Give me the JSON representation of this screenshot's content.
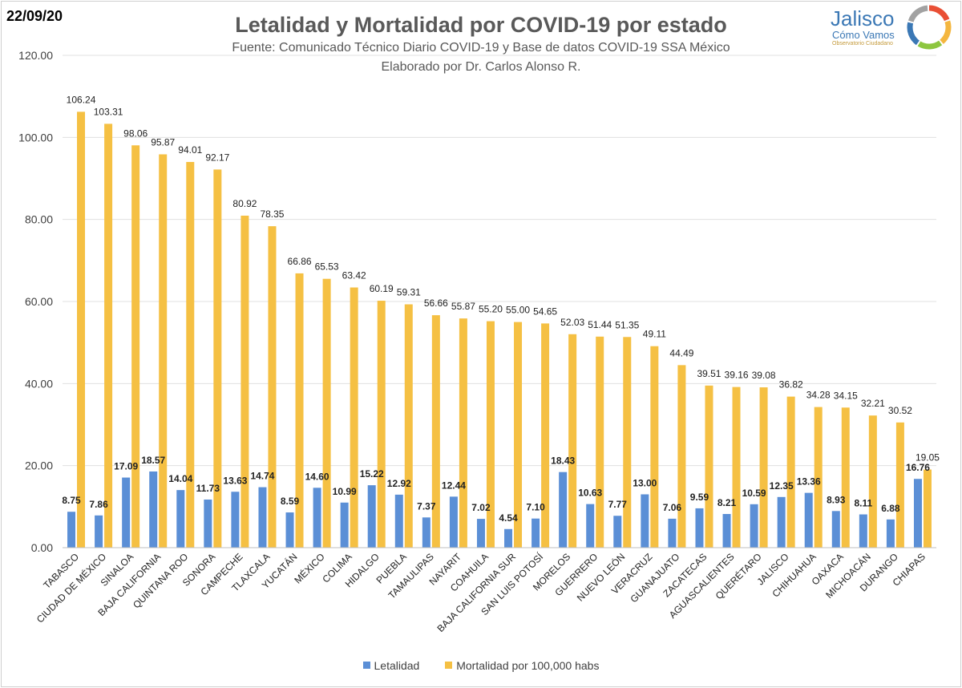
{
  "header": {
    "date": "22/09/20",
    "title": "Letalidad y Mortalidad por COVID-19 por estado",
    "subtitle1": "Fuente: Comunicado Técnico Diario COVID-19 y Base de datos COVID-19 SSA México",
    "subtitle2": "Elaborado por Dr. Carlos Alonso R."
  },
  "logo": {
    "name": "Jalisco",
    "tagline": "Cómo Vamos",
    "small": "Observatorio Ciudadano",
    "ring_colors": [
      "#e94f35",
      "#f4b63f",
      "#8dc63f",
      "#3b78b5",
      "#a2a2a2"
    ]
  },
  "colors": {
    "letalidad": "#5b8fd6",
    "mortalidad": "#f5c043",
    "grid": "#e0e0e0",
    "text": "#404040"
  },
  "chart_data": {
    "type": "bar",
    "ylim": [
      0,
      120
    ],
    "yticks": [
      "0.00",
      "20.00",
      "40.00",
      "60.00",
      "80.00",
      "100.00",
      "120.00"
    ],
    "grid": true,
    "legend": "bottom",
    "categories": [
      "TABASCO",
      "CIUDAD DE MÉXICO",
      "SINALOA",
      "BAJA CALIFORNIA",
      "QUINTANA ROO",
      "SONORA",
      "CAMPECHE",
      "TLAXCALA",
      "YUCATÁN",
      "MÉXICO",
      "COLIMA",
      "HIDALGO",
      "PUEBLA",
      "TAMAULIPAS",
      "NAYARIT",
      "COAHUILA",
      "BAJA CALIFORNIA SUR",
      "SAN LUIS POTOSÍ",
      "MORELOS",
      "GUERRERO",
      "NUEVO LEÓN",
      "VERACRUZ",
      "GUANAJUATO",
      "ZACATECAS",
      "AGUASCALIENTES",
      "QUERÉTARO",
      "JALISCO",
      "CHIHUAHUA",
      "OAXACA",
      "MICHOACÁN",
      "DURANGO",
      "CHIAPAS"
    ],
    "series": [
      {
        "name": "Letalidad",
        "values": [
          8.75,
          7.86,
          17.09,
          18.57,
          14.04,
          11.73,
          13.63,
          14.74,
          8.59,
          14.6,
          10.99,
          15.22,
          12.92,
          7.37,
          12.44,
          7.02,
          4.54,
          7.1,
          18.43,
          10.63,
          7.77,
          13.0,
          7.06,
          9.59,
          8.21,
          10.59,
          12.35,
          13.36,
          8.93,
          8.11,
          6.88,
          16.76
        ]
      },
      {
        "name": "Mortalidad por 100,000 habs",
        "values": [
          106.24,
          103.31,
          98.06,
          95.87,
          94.01,
          92.17,
          80.92,
          78.35,
          66.86,
          65.53,
          63.42,
          60.19,
          59.31,
          56.66,
          55.87,
          55.2,
          55.0,
          54.65,
          52.03,
          51.44,
          51.35,
          49.11,
          44.49,
          39.51,
          39.16,
          39.08,
          36.82,
          34.28,
          34.15,
          32.21,
          30.52,
          19.05
        ]
      }
    ]
  }
}
